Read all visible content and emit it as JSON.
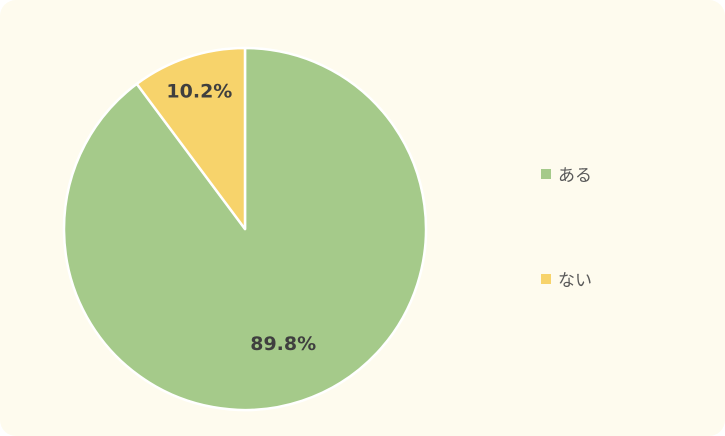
{
  "chart_data": {
    "type": "pie",
    "categories": [
      "ある",
      "ない"
    ],
    "values": [
      89.8,
      10.2
    ],
    "value_labels": [
      "89.8%",
      "10.2%"
    ],
    "colors": [
      "#a5ca8a",
      "#f7d36b"
    ],
    "legend_position": "right",
    "start_angle": "12 o'clock",
    "direction": "clockwise"
  }
}
